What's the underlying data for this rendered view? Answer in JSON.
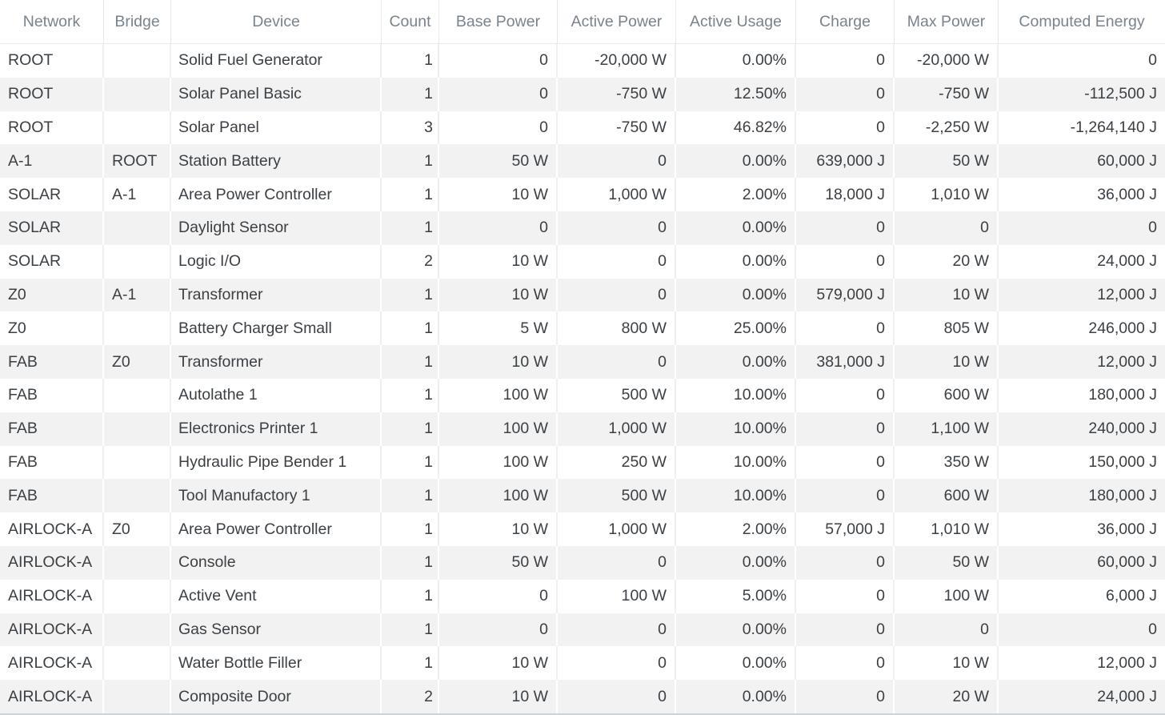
{
  "table": {
    "columns": [
      {
        "key": "network",
        "label": "Network",
        "align": "left"
      },
      {
        "key": "bridge",
        "label": "Bridge",
        "align": "left"
      },
      {
        "key": "device",
        "label": "Device",
        "align": "left"
      },
      {
        "key": "count",
        "label": "Count",
        "align": "right"
      },
      {
        "key": "base_power",
        "label": "Base Power",
        "align": "right"
      },
      {
        "key": "active_power",
        "label": "Active Power",
        "align": "right"
      },
      {
        "key": "active_usage",
        "label": "Active Usage",
        "align": "right"
      },
      {
        "key": "charge",
        "label": "Charge",
        "align": "right"
      },
      {
        "key": "max_power",
        "label": "Max Power",
        "align": "right"
      },
      {
        "key": "computed_energy",
        "label": "Computed Energy",
        "align": "right"
      }
    ],
    "rows": [
      {
        "network": "ROOT",
        "bridge": "",
        "device": "Solid Fuel Generator",
        "count": "1",
        "base_power": "0",
        "active_power": "-20,000 W",
        "active_usage": "0.00%",
        "charge": "0",
        "max_power": "-20,000 W",
        "computed_energy": "0"
      },
      {
        "network": "ROOT",
        "bridge": "",
        "device": "Solar Panel Basic",
        "count": "1",
        "base_power": "0",
        "active_power": "-750 W",
        "active_usage": "12.50%",
        "charge": "0",
        "max_power": "-750 W",
        "computed_energy": "-112,500 J"
      },
      {
        "network": "ROOT",
        "bridge": "",
        "device": "Solar Panel",
        "count": "3",
        "base_power": "0",
        "active_power": "-750 W",
        "active_usage": "46.82%",
        "charge": "0",
        "max_power": "-2,250 W",
        "computed_energy": "-1,264,140 J"
      },
      {
        "network": "A-1",
        "bridge": "ROOT",
        "device": "Station Battery",
        "count": "1",
        "base_power": "50 W",
        "active_power": "0",
        "active_usage": "0.00%",
        "charge": "639,000 J",
        "max_power": "50 W",
        "computed_energy": "60,000 J"
      },
      {
        "network": "SOLAR",
        "bridge": "A-1",
        "device": "Area Power Controller",
        "count": "1",
        "base_power": "10 W",
        "active_power": "1,000 W",
        "active_usage": "2.00%",
        "charge": "18,000 J",
        "max_power": "1,010 W",
        "computed_energy": "36,000 J"
      },
      {
        "network": "SOLAR",
        "bridge": "",
        "device": "Daylight Sensor",
        "count": "1",
        "base_power": "0",
        "active_power": "0",
        "active_usage": "0.00%",
        "charge": "0",
        "max_power": "0",
        "computed_energy": "0"
      },
      {
        "network": "SOLAR",
        "bridge": "",
        "device": "Logic I/O",
        "count": "2",
        "base_power": "10 W",
        "active_power": "0",
        "active_usage": "0.00%",
        "charge": "0",
        "max_power": "20 W",
        "computed_energy": "24,000 J"
      },
      {
        "network": "Z0",
        "bridge": "A-1",
        "device": "Transformer",
        "count": "1",
        "base_power": "10 W",
        "active_power": "0",
        "active_usage": "0.00%",
        "charge": "579,000 J",
        "max_power": "10 W",
        "computed_energy": "12,000 J"
      },
      {
        "network": "Z0",
        "bridge": "",
        "device": "Battery Charger Small",
        "count": "1",
        "base_power": "5 W",
        "active_power": "800 W",
        "active_usage": "25.00%",
        "charge": "0",
        "max_power": "805 W",
        "computed_energy": "246,000 J"
      },
      {
        "network": "FAB",
        "bridge": "Z0",
        "device": "Transformer",
        "count": "1",
        "base_power": "10 W",
        "active_power": "0",
        "active_usage": "0.00%",
        "charge": "381,000 J",
        "max_power": "10 W",
        "computed_energy": "12,000 J"
      },
      {
        "network": "FAB",
        "bridge": "",
        "device": "Autolathe 1",
        "count": "1",
        "base_power": "100 W",
        "active_power": "500 W",
        "active_usage": "10.00%",
        "charge": "0",
        "max_power": "600 W",
        "computed_energy": "180,000 J"
      },
      {
        "network": "FAB",
        "bridge": "",
        "device": "Electronics Printer 1",
        "count": "1",
        "base_power": "100 W",
        "active_power": "1,000 W",
        "active_usage": "10.00%",
        "charge": "0",
        "max_power": "1,100 W",
        "computed_energy": "240,000 J"
      },
      {
        "network": "FAB",
        "bridge": "",
        "device": "Hydraulic Pipe Bender 1",
        "count": "1",
        "base_power": "100 W",
        "active_power": "250 W",
        "active_usage": "10.00%",
        "charge": "0",
        "max_power": "350 W",
        "computed_energy": "150,000 J"
      },
      {
        "network": "FAB",
        "bridge": "",
        "device": "Tool Manufactory 1",
        "count": "1",
        "base_power": "100 W",
        "active_power": "500 W",
        "active_usage": "10.00%",
        "charge": "0",
        "max_power": "600 W",
        "computed_energy": "180,000 J"
      },
      {
        "network": "AIRLOCK-A",
        "bridge": "Z0",
        "device": "Area Power Controller",
        "count": "1",
        "base_power": "10 W",
        "active_power": "1,000 W",
        "active_usage": "2.00%",
        "charge": "57,000 J",
        "max_power": "1,010 W",
        "computed_energy": "36,000 J"
      },
      {
        "network": "AIRLOCK-A",
        "bridge": "",
        "device": "Console",
        "count": "1",
        "base_power": "50 W",
        "active_power": "0",
        "active_usage": "0.00%",
        "charge": "0",
        "max_power": "50 W",
        "computed_energy": "60,000 J"
      },
      {
        "network": "AIRLOCK-A",
        "bridge": "",
        "device": "Active Vent",
        "count": "1",
        "base_power": "0",
        "active_power": "100 W",
        "active_usage": "5.00%",
        "charge": "0",
        "max_power": "100 W",
        "computed_energy": "6,000 J"
      },
      {
        "network": "AIRLOCK-A",
        "bridge": "",
        "device": "Gas Sensor",
        "count": "1",
        "base_power": "0",
        "active_power": "0",
        "active_usage": "0.00%",
        "charge": "0",
        "max_power": "0",
        "computed_energy": "0"
      },
      {
        "network": "AIRLOCK-A",
        "bridge": "",
        "device": "Water Bottle Filler",
        "count": "1",
        "base_power": "10 W",
        "active_power": "0",
        "active_usage": "0.00%",
        "charge": "0",
        "max_power": "10 W",
        "computed_energy": "12,000 J"
      },
      {
        "network": "AIRLOCK-A",
        "bridge": "",
        "device": "Composite Door",
        "count": "2",
        "base_power": "10 W",
        "active_power": "0",
        "active_usage": "0.00%",
        "charge": "0",
        "max_power": "20 W",
        "computed_energy": "24,000 J"
      }
    ]
  },
  "colors": {
    "header_text": "#79838c",
    "body_text": "#3b4045",
    "row_stripe": "#f2f2f2",
    "grid_line": "#e5e7e9",
    "bottom_edge": "#ced2d4"
  }
}
